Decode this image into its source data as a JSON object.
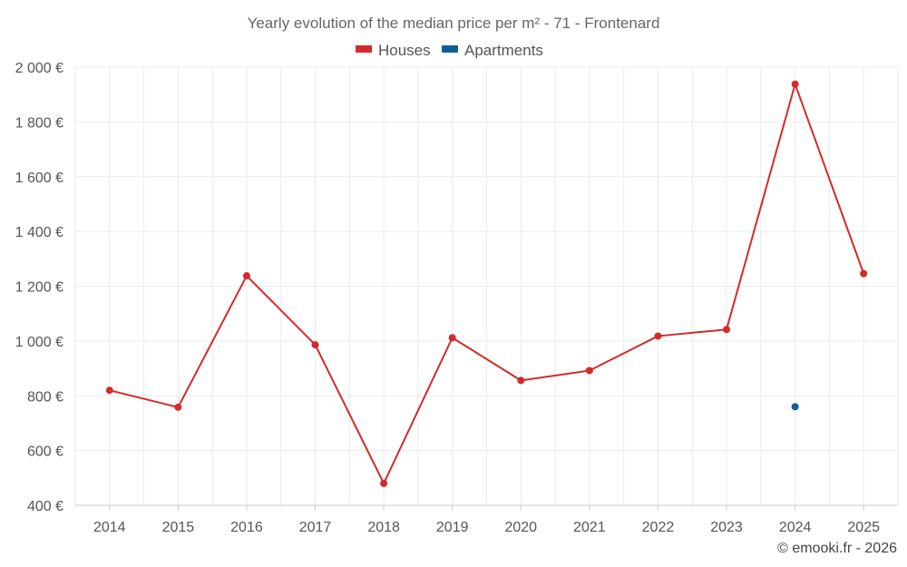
{
  "chart_data": {
    "type": "line",
    "title": "Yearly evolution of the median price per m² - 71 - Frontenard",
    "categories": [
      "2014",
      "2015",
      "2016",
      "2017",
      "2018",
      "2019",
      "2020",
      "2021",
      "2022",
      "2023",
      "2024",
      "2025"
    ],
    "series": [
      {
        "name": "Houses",
        "color": "#d42a2a",
        "values": [
          820,
          758,
          1238,
          986,
          480,
          1012,
          856,
          892,
          1018,
          1042,
          1938,
          1246
        ]
      },
      {
        "name": "Apartments",
        "color": "#0f5f99",
        "values": [
          null,
          null,
          null,
          null,
          null,
          null,
          null,
          null,
          null,
          null,
          760,
          null
        ]
      }
    ],
    "y_ticks": [
      400,
      600,
      800,
      1000,
      1200,
      1400,
      1600,
      1800,
      2000
    ],
    "y_tick_labels": [
      "400 €",
      "600 €",
      "800 €",
      "1 000 €",
      "1 200 €",
      "1 400 €",
      "1 600 €",
      "1 800 €",
      "2 000 €"
    ],
    "ylim": [
      400,
      2000
    ],
    "grid": true,
    "legend_position": "top-center",
    "xlabel": "",
    "ylabel": ""
  },
  "credit": "© emooki.fr - 2026"
}
